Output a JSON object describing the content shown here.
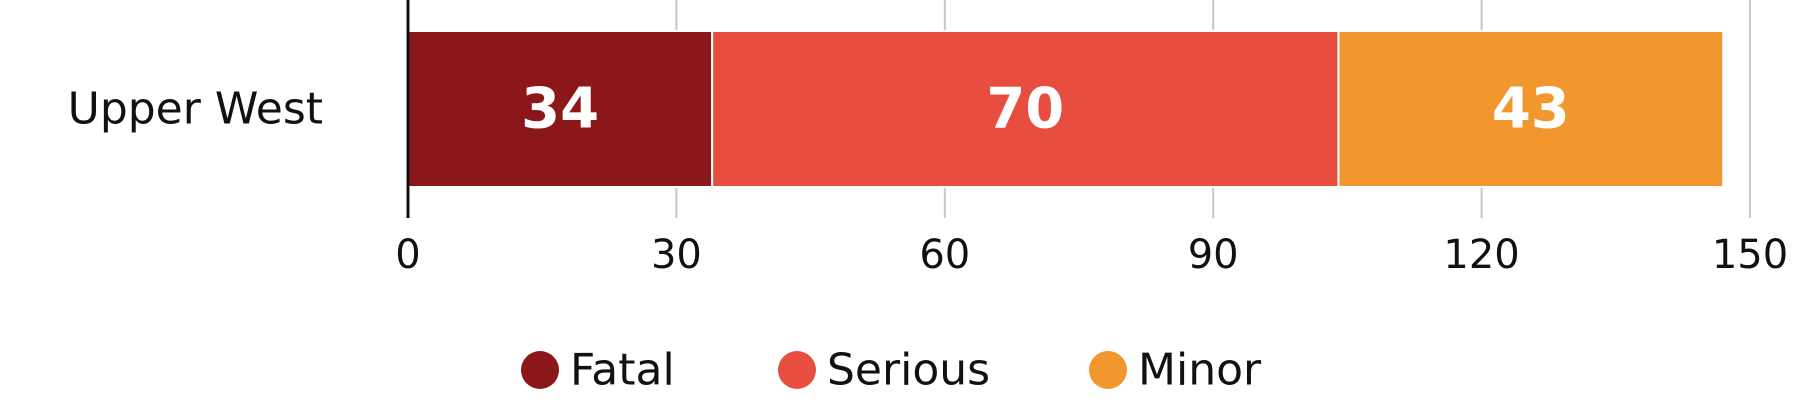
{
  "chart_data": {
    "type": "bar",
    "orientation": "horizontal",
    "stacked": true,
    "categories": [
      "Upper West"
    ],
    "series": [
      {
        "name": "Fatal",
        "values": [
          34
        ],
        "color": "#8b171a"
      },
      {
        "name": "Serious",
        "values": [
          70
        ],
        "color": "#e84e40"
      },
      {
        "name": "Minor",
        "values": [
          43
        ],
        "color": "#f2962e"
      }
    ],
    "xlim": [
      0,
      150
    ],
    "xticks": [
      0,
      30,
      60,
      90,
      120,
      150
    ],
    "grid": "vertical",
    "data_labels": true,
    "legend_position": "bottom-center"
  }
}
